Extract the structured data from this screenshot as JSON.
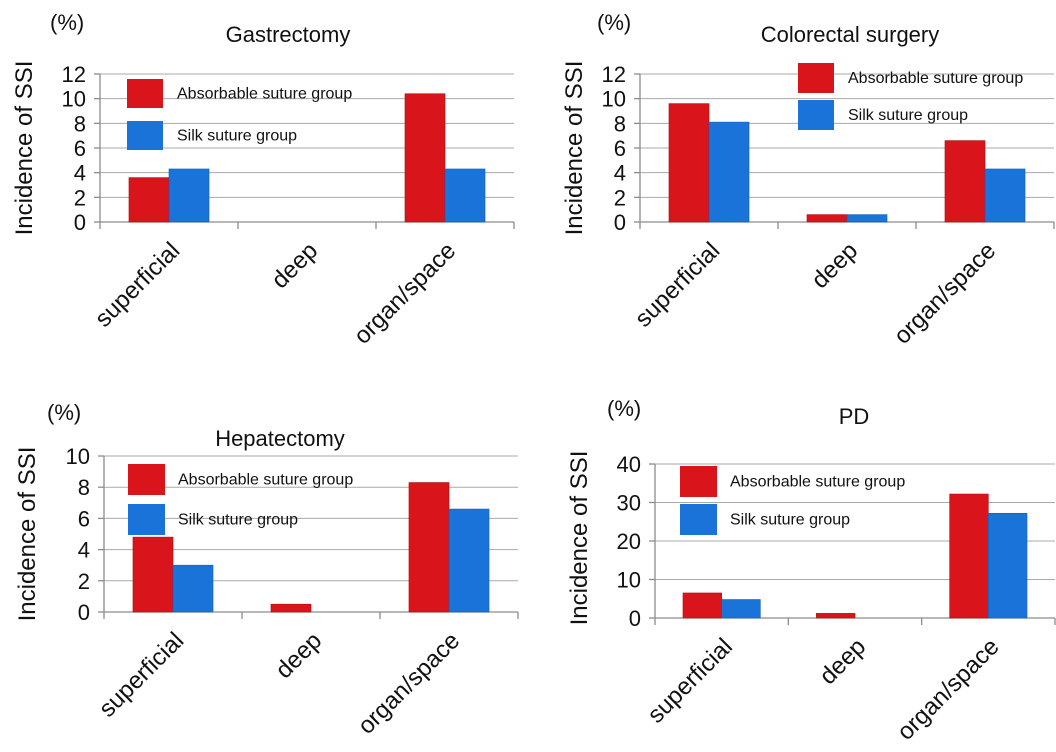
{
  "chart_data": [
    {
      "type": "bar",
      "unit": "(%)",
      "title": "Gastrectomy",
      "ylabel": "Incidence of SSI",
      "categories": [
        "superficial",
        "deep",
        "organ/space"
      ],
      "ylim": [
        0,
        12
      ],
      "yticks": [
        0,
        2,
        4,
        6,
        8,
        10,
        12
      ],
      "grid": true,
      "legend": "top-left",
      "series": [
        {
          "name": "Absorbable suture group",
          "color": "#d9141b",
          "values": [
            3.6,
            0,
            10.4
          ]
        },
        {
          "name": "Silk suture group",
          "color": "#1a73d9",
          "values": [
            4.3,
            0,
            4.3
          ]
        }
      ]
    },
    {
      "type": "bar",
      "unit": "(%)",
      "title": "Colorectal surgery",
      "ylabel": "Incidence of SSI",
      "categories": [
        "superficial",
        "deep",
        "organ/space"
      ],
      "ylim": [
        0,
        12
      ],
      "yticks": [
        0,
        2,
        4,
        6,
        8,
        10,
        12
      ],
      "grid": true,
      "legend": "top-right",
      "series": [
        {
          "name": "Absorbable suture group",
          "color": "#d9141b",
          "values": [
            9.6,
            0.6,
            6.6
          ]
        },
        {
          "name": "Silk suture group",
          "color": "#1a73d9",
          "values": [
            8.1,
            0.6,
            4.3
          ]
        }
      ]
    },
    {
      "type": "bar",
      "unit": "(%)",
      "title": "Hepatectomy",
      "ylabel": "Incidence of SSI",
      "categories": [
        "superficial",
        "deep",
        "organ/space"
      ],
      "ylim": [
        0,
        10
      ],
      "yticks": [
        0,
        2,
        4,
        6,
        8,
        10
      ],
      "grid": true,
      "legend": "top-left",
      "series": [
        {
          "name": "Absorbable suture group",
          "color": "#d9141b",
          "values": [
            4.8,
            0.5,
            8.3
          ]
        },
        {
          "name": "Silk suture group",
          "color": "#1a73d9",
          "values": [
            3.0,
            0,
            6.6
          ]
        }
      ]
    },
    {
      "type": "bar",
      "unit": "(%)",
      "title": "PD",
      "ylabel": "Incidence of SSI",
      "categories": [
        "superficial",
        "deep",
        "organ/space"
      ],
      "ylim": [
        0,
        40
      ],
      "yticks": [
        0,
        10,
        20,
        30,
        40
      ],
      "grid": true,
      "legend": "top-left",
      "series": [
        {
          "name": "Absorbable suture group",
          "color": "#d9141b",
          "values": [
            6.5,
            1.2,
            32.2
          ]
        },
        {
          "name": "Silk suture group",
          "color": "#1a73d9",
          "values": [
            4.8,
            0,
            27.2
          ]
        }
      ]
    }
  ]
}
